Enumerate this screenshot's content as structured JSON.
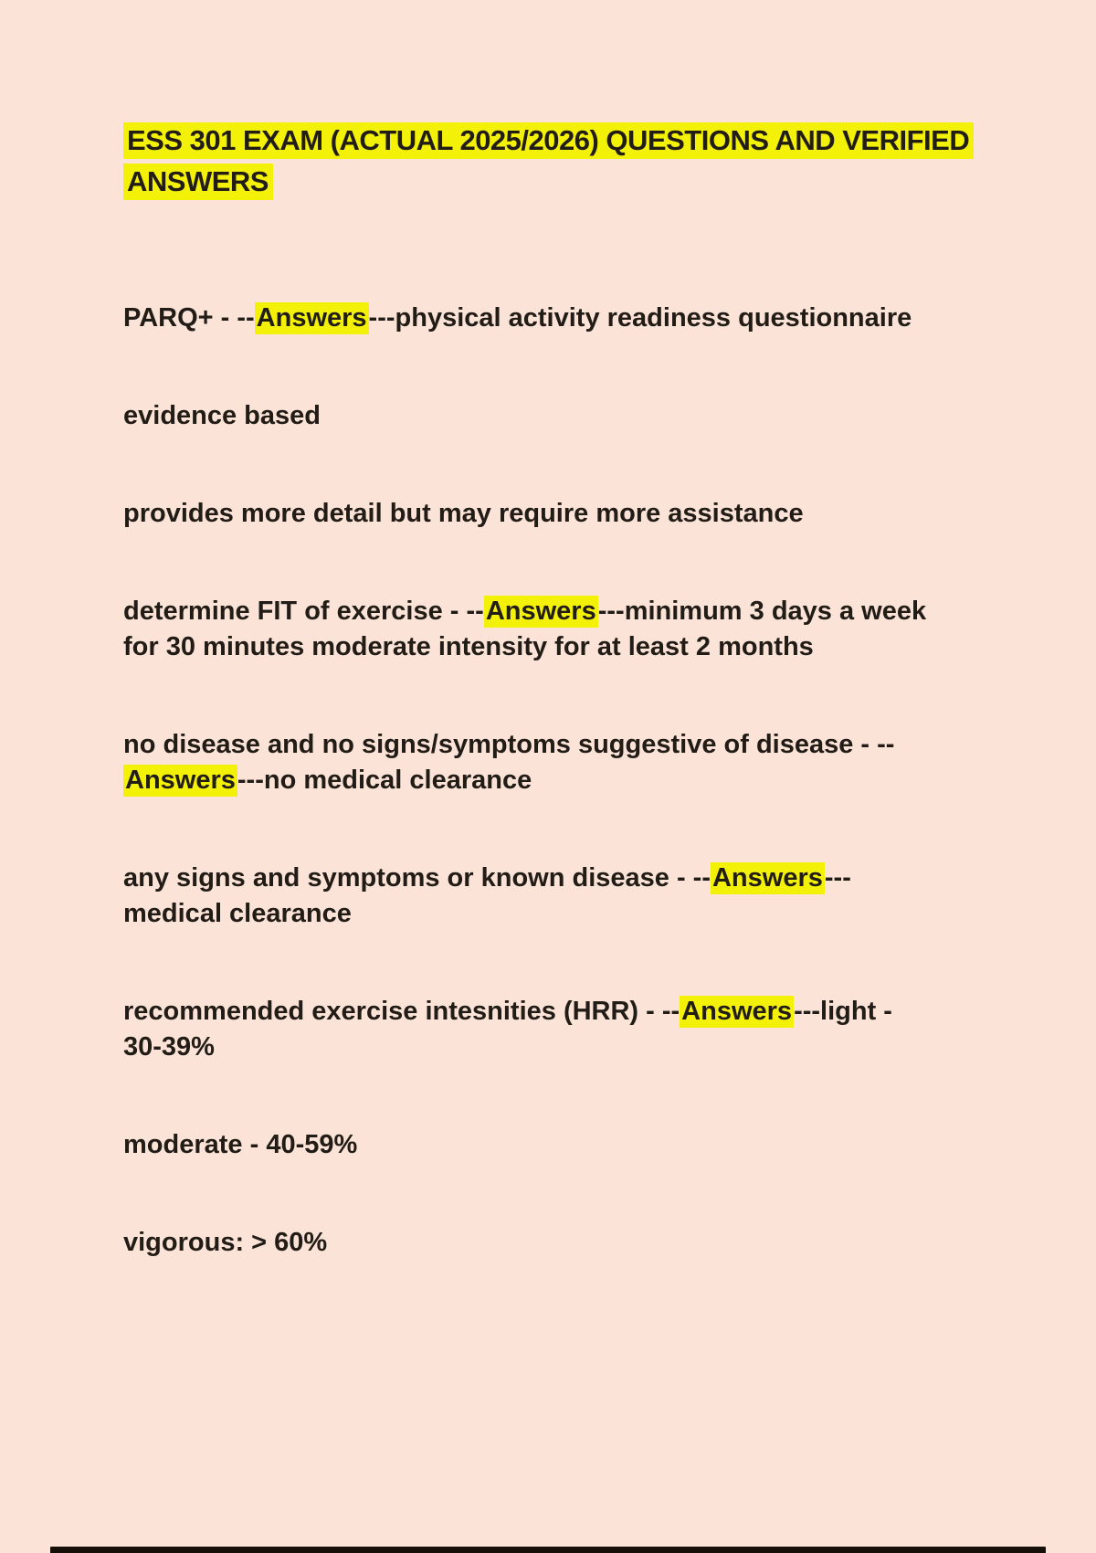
{
  "page": {
    "background_color": "#fbe3d7",
    "text_color": "#221c16",
    "highlight_color": "#f4f109",
    "bottom_bar_color": "#150e09"
  },
  "document": {
    "title": {
      "text": "ESS 301 EXAM (ACTUAL 2025/2026) QUESTIONS AND VERIFIED ANSWERS",
      "highlighted": true
    },
    "paragraphs": [
      {
        "segments": [
          {
            "text": "PARQ+ - --",
            "highlight": false
          },
          {
            "text": "Answers",
            "highlight": true
          },
          {
            "text": "---physical activity readiness questionnaire",
            "highlight": false
          }
        ]
      },
      {
        "segments": [
          {
            "text": "evidence based",
            "highlight": false
          }
        ]
      },
      {
        "segments": [
          {
            "text": "provides more detail but may require more assistance",
            "highlight": false
          }
        ]
      },
      {
        "segments": [
          {
            "text": "determine FIT of exercise - --",
            "highlight": false
          },
          {
            "text": "Answers",
            "highlight": true
          },
          {
            "text": "---minimum 3 days a week for 30 minutes moderate intensity for at least 2 months",
            "highlight": false
          }
        ]
      },
      {
        "segments": [
          {
            "text": "no disease and no signs/symptoms suggestive of disease - --",
            "highlight": false
          },
          {
            "text": "Answers",
            "highlight": true
          },
          {
            "text": "---no medical clearance",
            "highlight": false
          }
        ]
      },
      {
        "segments": [
          {
            "text": "any signs and symptoms or known disease - --",
            "highlight": false
          },
          {
            "text": "Answers",
            "highlight": true
          },
          {
            "text": "---medical clearance",
            "highlight": false
          }
        ]
      },
      {
        "segments": [
          {
            "text": "recommended exercise intesnities (HRR) - --",
            "highlight": false
          },
          {
            "text": "Answers",
            "highlight": true
          },
          {
            "text": "---light - 30-39%",
            "highlight": false
          }
        ]
      },
      {
        "segments": [
          {
            "text": "moderate - 40-59%",
            "highlight": false
          }
        ]
      },
      {
        "segments": [
          {
            "text": "vigorous: > 60%",
            "highlight": false
          }
        ]
      }
    ]
  }
}
